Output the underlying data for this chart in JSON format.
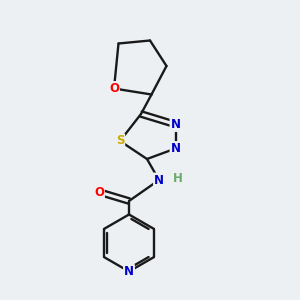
{
  "background_color": "#edf0f2",
  "bond_color": "#1a1a1a",
  "atom_colors": {
    "O": "#ff0000",
    "N": "#0000cc",
    "S": "#ccaa00",
    "H": "#6aaa6a",
    "C": "#1a1a1a"
  },
  "figsize": [
    3.0,
    3.0
  ],
  "dpi": 100
}
